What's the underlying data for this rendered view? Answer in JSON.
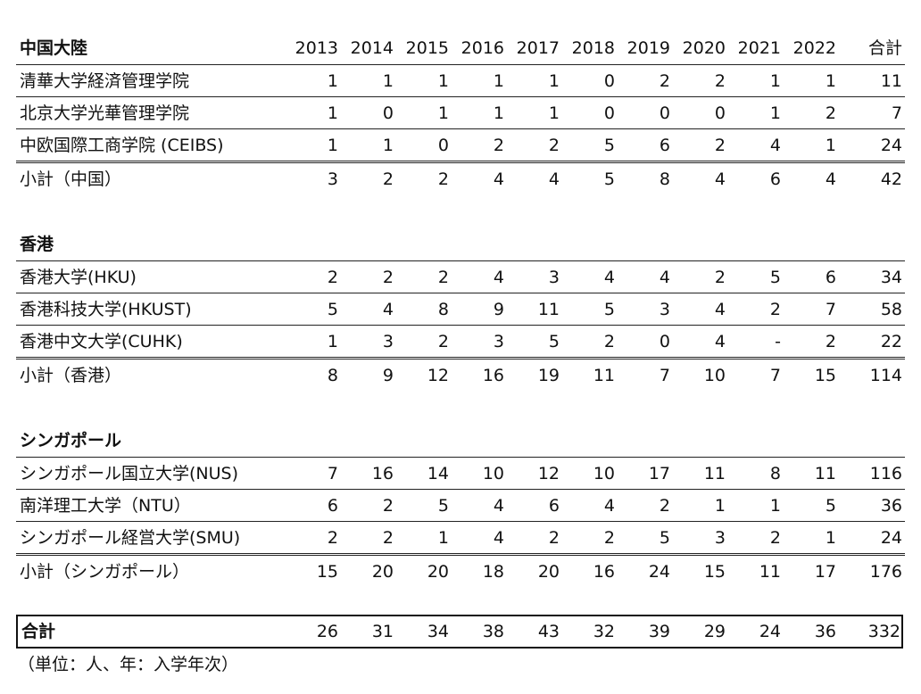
{
  "header": {
    "columns": [
      "2013",
      "2014",
      "2015",
      "2016",
      "2017",
      "2018",
      "2019",
      "2020",
      "2021",
      "2022",
      "合計"
    ]
  },
  "sections": [
    {
      "title": "中国大陸",
      "rows": [
        {
          "name": "清華大学経済管理学院",
          "values": [
            "1",
            "1",
            "1",
            "1",
            "1",
            "0",
            "2",
            "2",
            "1",
            "1",
            "11"
          ]
        },
        {
          "name": "北京大学光華管理学院",
          "values": [
            "1",
            "0",
            "1",
            "1",
            "1",
            "0",
            "0",
            "0",
            "1",
            "2",
            "7"
          ]
        },
        {
          "name": "中欧国際工商学院 (CEIBS)",
          "values": [
            "1",
            "1",
            "0",
            "2",
            "2",
            "5",
            "6",
            "2",
            "4",
            "1",
            "24"
          ]
        }
      ],
      "subtotal": {
        "name": "小計（中国）",
        "values": [
          "3",
          "2",
          "2",
          "4",
          "4",
          "5",
          "8",
          "4",
          "6",
          "4",
          "42"
        ]
      }
    },
    {
      "title": "香港",
      "rows": [
        {
          "name": "香港大学(HKU)",
          "values": [
            "2",
            "2",
            "2",
            "4",
            "3",
            "4",
            "4",
            "2",
            "5",
            "6",
            "34"
          ]
        },
        {
          "name": "香港科技大学(HKUST)",
          "values": [
            "5",
            "4",
            "8",
            "9",
            "11",
            "5",
            "3",
            "4",
            "2",
            "7",
            "58"
          ]
        },
        {
          "name": "香港中文大学(CUHK)",
          "values": [
            "1",
            "3",
            "2",
            "3",
            "5",
            "2",
            "0",
            "4",
            "-",
            "2",
            "22"
          ]
        }
      ],
      "subtotal": {
        "name": "小計（香港）",
        "values": [
          "8",
          "9",
          "12",
          "16",
          "19",
          "11",
          "7",
          "10",
          "7",
          "15",
          "114"
        ]
      }
    },
    {
      "title": "シンガポール",
      "rows": [
        {
          "name": "シンガポール国立大学(NUS)",
          "values": [
            "7",
            "16",
            "14",
            "10",
            "12",
            "10",
            "17",
            "11",
            "8",
            "11",
            "116"
          ]
        },
        {
          "name": "南洋理工大学（NTU）",
          "values": [
            "6",
            "2",
            "5",
            "4",
            "6",
            "4",
            "2",
            "1",
            "1",
            "5",
            "36"
          ]
        },
        {
          "name": "シンガポール経営大学(SMU)",
          "values": [
            "2",
            "2",
            "1",
            "4",
            "2",
            "2",
            "5",
            "3",
            "2",
            "1",
            "24"
          ]
        }
      ],
      "subtotal": {
        "name": "小計（シンガポール）",
        "values": [
          "15",
          "20",
          "20",
          "18",
          "20",
          "16",
          "24",
          "15",
          "11",
          "17",
          "176"
        ]
      }
    }
  ],
  "grand_total": {
    "name": "合計",
    "values": [
      "26",
      "31",
      "34",
      "38",
      "43",
      "32",
      "39",
      "29",
      "24",
      "36",
      "332"
    ]
  },
  "note": "（単位：人、年：入学年次）"
}
